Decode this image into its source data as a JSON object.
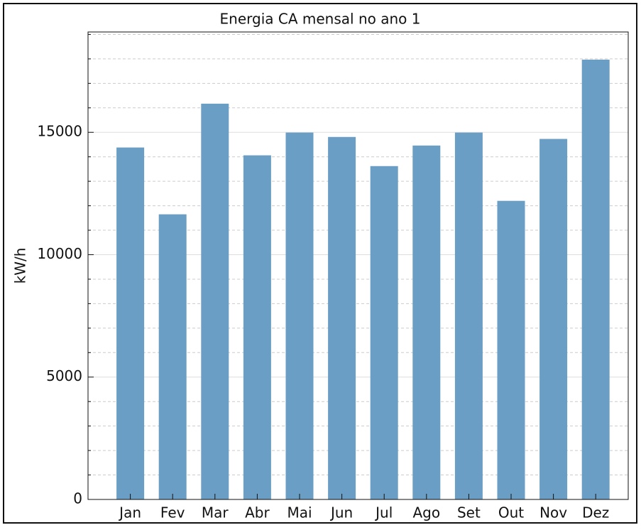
{
  "chart_data": {
    "type": "bar",
    "title": "Energia CA mensal no ano 1",
    "ylabel": "kW/h",
    "categories": [
      "Jan",
      "Fev",
      "Mar",
      "Abr",
      "Mai",
      "Jun",
      "Jul",
      "Ago",
      "Set",
      "Out",
      "Nov",
      "Dez"
    ],
    "values": [
      14380,
      11650,
      16170,
      14060,
      14990,
      14810,
      13620,
      14460,
      14990,
      12200,
      14730,
      17970
    ],
    "color": "#6b9ec4",
    "ylim": [
      0,
      19100
    ],
    "yticks": [
      0,
      5000,
      10000,
      15000
    ],
    "yticks_minor": [
      1000,
      2000,
      3000,
      4000,
      6000,
      7000,
      8000,
      9000,
      11000,
      12000,
      13000,
      14000,
      16000,
      17000,
      18000,
      19000
    ],
    "grid": true
  }
}
